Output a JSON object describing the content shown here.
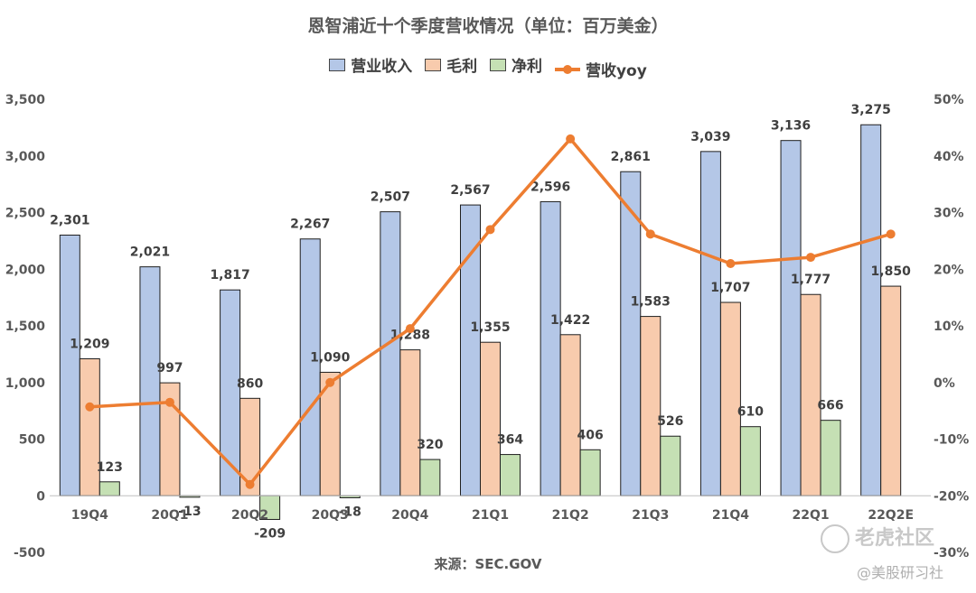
{
  "chart_data": {
    "type": "bar",
    "title": "恩智浦近十个季度营收情况（单位：百万美金）",
    "categories": [
      "19Q4",
      "20Q1",
      "20Q2",
      "20Q3",
      "20Q4",
      "21Q1",
      "21Q2",
      "21Q3",
      "21Q4",
      "22Q1",
      "22Q2E"
    ],
    "series": [
      {
        "name": "营业收入",
        "type": "bar",
        "color": "#B4C7E7",
        "values": [
          2301,
          2021,
          1817,
          2267,
          2507,
          2567,
          2596,
          2861,
          3039,
          3136,
          3275
        ],
        "labels": [
          "2,301",
          "2,021",
          "1,817",
          "2,267",
          "2,507",
          "2,567",
          "2,596",
          "2,861",
          "3,039",
          "3,136",
          "3,275"
        ]
      },
      {
        "name": "毛利",
        "type": "bar",
        "color": "#F8CBAD",
        "values": [
          1209,
          997,
          860,
          1090,
          1288,
          1355,
          1422,
          1583,
          1707,
          1777,
          1850
        ],
        "labels": [
          "1,209",
          "997",
          "860",
          "1,090",
          "1,288",
          "1,355",
          "1,422",
          "1,583",
          "1,707",
          "1,777",
          "1,850"
        ]
      },
      {
        "name": "净利",
        "type": "bar",
        "color": "#C5E0B4",
        "values": [
          123,
          -13,
          -209,
          -18,
          320,
          364,
          406,
          526,
          610,
          666,
          null
        ],
        "labels": [
          "123",
          "-13",
          "-209",
          "-18",
          "320",
          "364",
          "406",
          "526",
          "610",
          "666",
          ""
        ]
      },
      {
        "name": "营收yoy",
        "type": "line",
        "axis": "right",
        "color": "#ED7D31",
        "values": [
          -4.3,
          -3.5,
          -18.0,
          0.0,
          9.5,
          27.0,
          43.0,
          26.2,
          21.0,
          22.1,
          26.2
        ]
      }
    ],
    "ylim": [
      -500,
      3500
    ],
    "yticks": [
      "-500",
      "0",
      "500",
      "1,000",
      "1,500",
      "2,000",
      "2,500",
      "3,000",
      "3,500"
    ],
    "y2lim": [
      -30,
      50
    ],
    "y2ticks": [
      "-30%",
      "-20%",
      "-10%",
      "0%",
      "10%",
      "20%",
      "30%",
      "40%",
      "50%"
    ],
    "grid": false,
    "legend_position": "top"
  },
  "source_label": "来源：SEC.GOV",
  "watermark": {
    "brand": "老虎社区",
    "account": "@美股研习社"
  }
}
